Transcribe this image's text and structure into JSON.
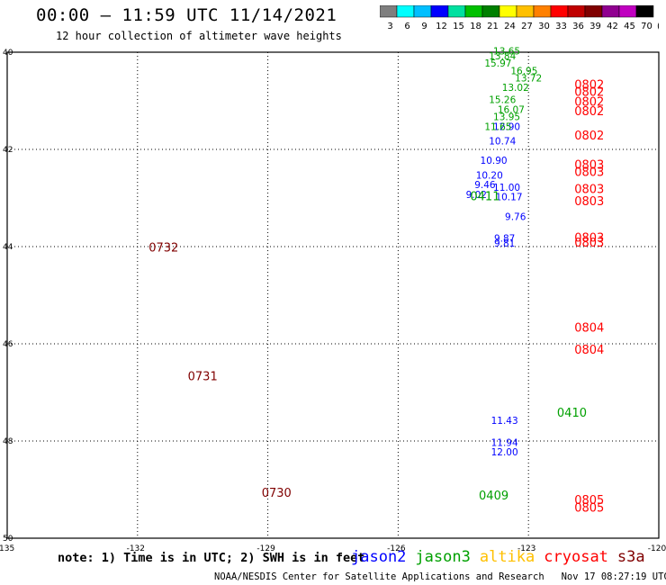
{
  "header": {
    "title": "00:00 — 11:59 UTC 11/14/2021",
    "subtitle": "12 hour collection of altimeter wave heights"
  },
  "colorbar": {
    "ticks": [
      "3",
      "6",
      "9",
      "12",
      "15",
      "18",
      "21",
      "24",
      "27",
      "30",
      "33",
      "36",
      "39",
      "42",
      "45",
      "70",
      "(ft)"
    ],
    "colors": [
      "#7f7f7f",
      "#00ffff",
      "#00bfff",
      "#0000ff",
      "#00e0a0",
      "#00c000",
      "#008000",
      "#ffff00",
      "#ffc000",
      "#ff8000",
      "#ff0000",
      "#c00000",
      "#800000",
      "#900090",
      "#c000c0",
      "#000000"
    ]
  },
  "footer": {
    "note": "note: 1) Time is in UTC; 2) SWH is in feet",
    "credit": "NOAA/NESDIS Center for Satellite Applications and Research   Nov 17 08:27:19 UTC 2021",
    "legend": [
      {
        "name": "jason2",
        "color": "#0000ff"
      },
      {
        "name": "jason3",
        "color": "#00a000"
      },
      {
        "name": "altika",
        "color": "#ffc000"
      },
      {
        "name": "cryosat",
        "color": "#ff0000"
      },
      {
        "name": "s3a",
        "color": "#800000"
      }
    ]
  },
  "chart_data": {
    "type": "scatter",
    "title": "00:00 — 11:59 UTC 11/14/2021",
    "xlim": [
      -135,
      -120
    ],
    "ylim": [
      30,
      40
    ],
    "xticks": [
      "-135",
      "-132",
      "-129",
      "-126",
      "-123",
      "-120"
    ],
    "yticks": [
      "40",
      "42",
      "44",
      "46",
      "48",
      "50"
    ],
    "grid": true,
    "series": [
      {
        "name": "jason2",
        "color": "#0000ff",
        "points": [
          [
            -123.5,
            38.4,
            "12.90"
          ],
          [
            -123.6,
            38.1,
            "10.74"
          ],
          [
            -123.8,
            37.7,
            "10.90"
          ],
          [
            -123.9,
            37.4,
            "10.20"
          ],
          [
            -124.0,
            37.2,
            "9.46"
          ],
          [
            -124.2,
            37.0,
            "9.02"
          ],
          [
            -123.5,
            37.15,
            "11.00"
          ],
          [
            -123.45,
            36.95,
            "10.17"
          ],
          [
            -123.3,
            36.55,
            "9.76"
          ],
          [
            -123.55,
            36.1,
            "9.87"
          ],
          [
            -123.55,
            36.0,
            "9.81"
          ],
          [
            -123.55,
            32.35,
            "11.43"
          ],
          [
            -123.55,
            31.9,
            "11.94"
          ],
          [
            -123.55,
            31.7,
            "12.00"
          ]
        ]
      },
      {
        "name": "jason3",
        "color": "#00a000",
        "points": [
          [
            -123.5,
            39.95,
            "13.65"
          ],
          [
            -123.6,
            39.85,
            "13.84"
          ],
          [
            -123.7,
            39.7,
            "15.97"
          ],
          [
            -123.1,
            39.55,
            "16.95"
          ],
          [
            -123.0,
            39.4,
            "13.72"
          ],
          [
            -123.3,
            39.2,
            "13.02"
          ],
          [
            -123.6,
            38.95,
            "15.26"
          ],
          [
            -123.4,
            38.75,
            "16.07"
          ],
          [
            -123.5,
            38.6,
            "13.95"
          ],
          [
            -123.7,
            38.4,
            "11.65"
          ],
          [
            -124.0,
            36.95,
            "0411"
          ],
          [
            -122.0,
            32.5,
            "0410"
          ],
          [
            -123.8,
            30.8,
            "0409"
          ]
        ]
      },
      {
        "name": "altika",
        "color": "#ffc000",
        "points": []
      },
      {
        "name": "cryosat",
        "color": "#ff0000",
        "points": [
          [
            -121.6,
            39.25,
            "0802"
          ],
          [
            -121.6,
            39.1,
            "0802"
          ],
          [
            -121.6,
            38.9,
            "0802"
          ],
          [
            -121.6,
            38.7,
            "0802"
          ],
          [
            -121.6,
            38.2,
            "0802"
          ],
          [
            -121.6,
            37.6,
            "0803"
          ],
          [
            -121.6,
            37.45,
            "0803"
          ],
          [
            -121.6,
            37.1,
            "0803"
          ],
          [
            -121.6,
            36.85,
            "0803"
          ],
          [
            -121.6,
            36.1,
            "0803"
          ],
          [
            -121.6,
            36.0,
            "0803"
          ],
          [
            -121.6,
            34.25,
            "0804"
          ],
          [
            -121.6,
            33.8,
            "0804"
          ],
          [
            -121.6,
            30.7,
            "0805"
          ],
          [
            -121.6,
            30.55,
            "0805"
          ]
        ]
      },
      {
        "name": "s3a",
        "color": "#800000",
        "points": [
          [
            -131.4,
            35.9,
            "0732"
          ],
          [
            -130.5,
            33.25,
            "0731"
          ],
          [
            -128.8,
            30.85,
            "0730"
          ]
        ]
      }
    ]
  }
}
